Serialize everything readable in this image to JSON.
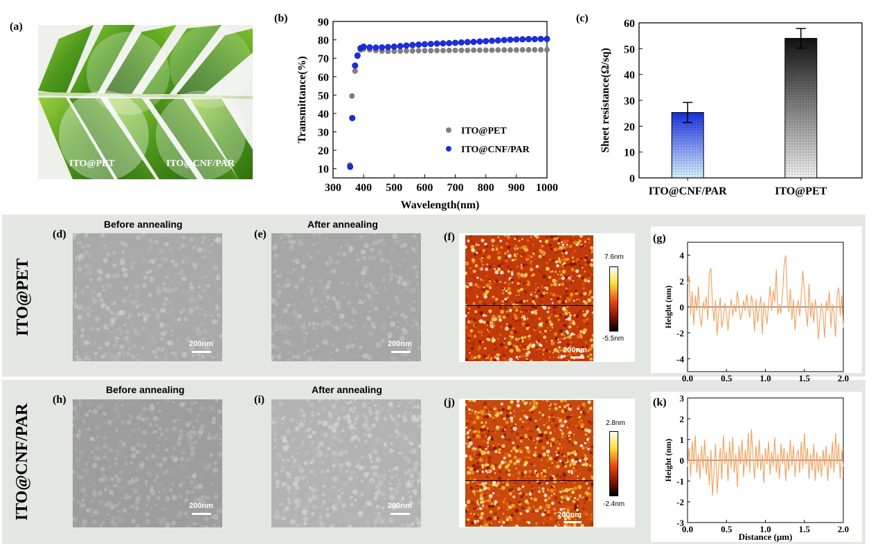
{
  "panel_labels": {
    "a": "(a)",
    "b": "(b)",
    "c": "(c)",
    "d": "(d)",
    "e": "(e)",
    "f": "(f)",
    "g": "(g)",
    "h": "(h)",
    "i": "(i)",
    "j": "(j)",
    "k": "(k)"
  },
  "photo": {
    "label_left": "ITO@PET",
    "label_right": "ITO@CNF/PAR"
  },
  "rows": {
    "top_label": "ITO@PET",
    "bottom_label": "ITO@CNF/PAR"
  },
  "sem": {
    "before_title": "Before annealing",
    "after_title": "After annealing",
    "scale_bar": "200nm"
  },
  "afm_top": {
    "max_label": "7.6nm",
    "min_label": "-5.5nm",
    "scale_bar": "200nm"
  },
  "afm_bottom": {
    "max_label": "2.8nm",
    "min_label": "-2.4nm",
    "scale_bar": "200nm"
  },
  "colors": {
    "grey_series": "#808080",
    "blue_series": "#1a2ee6",
    "profile_line": "#f2a462",
    "panel_bg": "#e3e7e1"
  },
  "chart_data": [
    {
      "id": "b",
      "type": "scatter",
      "xlabel": "Wavelength(nm)",
      "ylabel": "Transmittance(%)",
      "xlim": [
        300,
        1000
      ],
      "ylim": [
        5,
        90
      ],
      "xticks": [
        300,
        400,
        500,
        600,
        700,
        800,
        900,
        1000
      ],
      "yticks": [
        10,
        20,
        30,
        40,
        50,
        60,
        70,
        80,
        90
      ],
      "legend_position": "center-right",
      "series": [
        {
          "name": "ITO@PET",
          "color": "#808080",
          "points": [
            [
              355,
              12
            ],
            [
              362,
              49.5
            ],
            [
              372,
              63
            ],
            [
              380,
              71
            ],
            [
              390,
              74.5
            ],
            [
              400,
              75
            ],
            [
              420,
              74.6
            ],
            [
              440,
              74.2
            ],
            [
              460,
              73.9
            ],
            [
              480,
              73.8
            ],
            [
              500,
              73.8
            ],
            [
              520,
              73.9
            ],
            [
              540,
              74.0
            ],
            [
              560,
              74.0
            ],
            [
              580,
              74.1
            ],
            [
              600,
              74.1
            ],
            [
              620,
              74.1
            ],
            [
              640,
              74.2
            ],
            [
              660,
              74.2
            ],
            [
              680,
              74.3
            ],
            [
              700,
              74.3
            ],
            [
              720,
              74.3
            ],
            [
              740,
              74.3
            ],
            [
              760,
              74.4
            ],
            [
              780,
              74.4
            ],
            [
              800,
              74.4
            ],
            [
              820,
              74.4
            ],
            [
              840,
              74.5
            ],
            [
              860,
              74.5
            ],
            [
              880,
              74.5
            ],
            [
              900,
              74.5
            ],
            [
              920,
              74.6
            ],
            [
              940,
              74.6
            ],
            [
              960,
              74.6
            ],
            [
              980,
              74.6
            ],
            [
              1000,
              74.6
            ]
          ]
        },
        {
          "name": "ITO@CNF/PAR",
          "color": "#1a2ee6",
          "points": [
            [
              356,
              11
            ],
            [
              363,
              37.5
            ],
            [
              372,
              66
            ],
            [
              380,
              71.5
            ],
            [
              390,
              75.5
            ],
            [
              400,
              76.3
            ],
            [
              420,
              75.9
            ],
            [
              440,
              75.8
            ],
            [
              460,
              75.9
            ],
            [
              480,
              76.1
            ],
            [
              500,
              76.3
            ],
            [
              520,
              76.6
            ],
            [
              540,
              76.9
            ],
            [
              560,
              77.2
            ],
            [
              580,
              77.4
            ],
            [
              600,
              77.6
            ],
            [
              620,
              77.8
            ],
            [
              640,
              78.0
            ],
            [
              660,
              78.1
            ],
            [
              680,
              78.2
            ],
            [
              700,
              78.4
            ],
            [
              720,
              78.6
            ],
            [
              740,
              78.8
            ],
            [
              760,
              78.9
            ],
            [
              780,
              79.1
            ],
            [
              800,
              79.3
            ],
            [
              820,
              79.5
            ],
            [
              840,
              79.7
            ],
            [
              860,
              79.9
            ],
            [
              880,
              80.1
            ],
            [
              900,
              80.2
            ],
            [
              920,
              80.3
            ],
            [
              940,
              80.4
            ],
            [
              960,
              80.4
            ],
            [
              980,
              80.5
            ],
            [
              1000,
              80.5
            ]
          ]
        }
      ]
    },
    {
      "id": "c",
      "type": "bar",
      "ylabel": "Sheet resistance(Ω/sq)",
      "ylim": [
        0,
        60
      ],
      "yticks": [
        0,
        10,
        20,
        30,
        40,
        50,
        60
      ],
      "categories": [
        "ITO@CNF/PAR",
        "ITO@PET"
      ],
      "values": [
        25.3,
        54.0
      ],
      "errors": [
        3.9,
        3.8
      ],
      "bar_colors": [
        "#1f3fe0",
        "#1a1a1a"
      ]
    },
    {
      "id": "g",
      "type": "line",
      "ylabel": "Height (nm)",
      "xlim": [
        0.0,
        2.0
      ],
      "ylim": [
        -5,
        5
      ],
      "xticks": [
        0.0,
        0.5,
        1.0,
        1.5,
        2.0
      ],
      "yticks": [
        -4,
        -2,
        0,
        2,
        4
      ],
      "series": [
        {
          "color": "#f2a462",
          "x": [
            0.0,
            0.02,
            0.04,
            0.06,
            0.08,
            0.1,
            0.12,
            0.14,
            0.16,
            0.18,
            0.2,
            0.22,
            0.24,
            0.26,
            0.28,
            0.3,
            0.32,
            0.34,
            0.36,
            0.38,
            0.4,
            0.42,
            0.44,
            0.46,
            0.48,
            0.5,
            0.52,
            0.54,
            0.56,
            0.58,
            0.6,
            0.62,
            0.64,
            0.66,
            0.68,
            0.7,
            0.72,
            0.74,
            0.76,
            0.78,
            0.8,
            0.82,
            0.84,
            0.86,
            0.88,
            0.9,
            0.92,
            0.94,
            0.96,
            0.98,
            1.0,
            1.02,
            1.04,
            1.06,
            1.08,
            1.1,
            1.12,
            1.14,
            1.16,
            1.18,
            1.2,
            1.22,
            1.24,
            1.26,
            1.28,
            1.3,
            1.32,
            1.34,
            1.36,
            1.38,
            1.4,
            1.42,
            1.44,
            1.46,
            1.48,
            1.5,
            1.52,
            1.54,
            1.56,
            1.58,
            1.6,
            1.62,
            1.64,
            1.66,
            1.68,
            1.7,
            1.72,
            1.74,
            1.76,
            1.78,
            1.8,
            1.82,
            1.84,
            1.86,
            1.88,
            1.9,
            1.92,
            1.94,
            1.96,
            1.98,
            2.0
          ],
          "y": [
            1.8,
            2.4,
            -0.6,
            1.2,
            -1.4,
            0.9,
            -0.3,
            1.6,
            -0.8,
            -1.5,
            0.4,
            -0.2,
            0.8,
            -1.0,
            2.6,
            3.0,
            0.2,
            -1.1,
            0.5,
            -2.2,
            -0.4,
            0.7,
            -1.6,
            -0.9,
            0.3,
            -0.5,
            -1.8,
            -0.2,
            0.6,
            -0.7,
            0.2,
            -0.4,
            1.2,
            0.3,
            -1.0,
            -0.5,
            0.5,
            -0.3,
            1.0,
            -0.2,
            -0.8,
            0.9,
            0.3,
            -1.9,
            0.6,
            -1.2,
            -0.1,
            0.8,
            -2.1,
            0.4,
            -0.4,
            -1.3,
            0.2,
            1.6,
            -0.3,
            1.3,
            0.4,
            2.9,
            -0.6,
            0.2,
            -0.5,
            1.1,
            3.2,
            4.0,
            0.8,
            -0.4,
            1.4,
            -1.0,
            0.6,
            -1.8,
            -0.2,
            0.5,
            -0.7,
            0.9,
            2.8,
            1.2,
            -0.3,
            -1.5,
            1.8,
            -0.8,
            0.4,
            -1.2,
            0.6,
            -0.4,
            -2.5,
            -1.0,
            0.3,
            -0.6,
            -2.4,
            0.5,
            -0.3,
            1.2,
            -1.6,
            0.2,
            -0.5,
            -2.3,
            0.9,
            1.5,
            -0.7,
            0.9,
            -1.6
          ]
        }
      ]
    },
    {
      "id": "k",
      "type": "line",
      "xlabel": "Distance (μm)",
      "ylabel": "Height (nm)",
      "xlim": [
        0.0,
        2.0
      ],
      "ylim": [
        -3,
        3
      ],
      "xticks": [
        0.0,
        0.5,
        1.0,
        1.5,
        2.0
      ],
      "yticks": [
        -3,
        -2,
        -1,
        0,
        1,
        2,
        3
      ],
      "series": [
        {
          "color": "#f2a462",
          "x": [
            0.0,
            0.02,
            0.04,
            0.06,
            0.08,
            0.1,
            0.12,
            0.14,
            0.16,
            0.18,
            0.2,
            0.22,
            0.24,
            0.26,
            0.28,
            0.3,
            0.32,
            0.34,
            0.36,
            0.38,
            0.4,
            0.42,
            0.44,
            0.46,
            0.48,
            0.5,
            0.52,
            0.54,
            0.56,
            0.58,
            0.6,
            0.62,
            0.64,
            0.66,
            0.68,
            0.7,
            0.72,
            0.74,
            0.76,
            0.78,
            0.8,
            0.82,
            0.84,
            0.86,
            0.88,
            0.9,
            0.92,
            0.94,
            0.96,
            0.98,
            1.0,
            1.02,
            1.04,
            1.06,
            1.08,
            1.1,
            1.12,
            1.14,
            1.16,
            1.18,
            1.2,
            1.22,
            1.24,
            1.26,
            1.28,
            1.3,
            1.32,
            1.34,
            1.36,
            1.38,
            1.4,
            1.42,
            1.44,
            1.46,
            1.48,
            1.5,
            1.52,
            1.54,
            1.56,
            1.58,
            1.6,
            1.62,
            1.64,
            1.66,
            1.68,
            1.7,
            1.72,
            1.74,
            1.76,
            1.78,
            1.8,
            1.82,
            1.84,
            1.86,
            1.88,
            1.9,
            1.92,
            1.94,
            1.96,
            1.98,
            2.0
          ],
          "y": [
            -0.3,
            0.6,
            -0.8,
            0.9,
            -0.2,
            1.2,
            -0.6,
            0.3,
            -0.9,
            0.7,
            -0.4,
            1.0,
            -0.7,
            0.2,
            -1.2,
            0.5,
            -1.7,
            -0.5,
            0.8,
            -1.6,
            -0.3,
            0.6,
            -0.9,
            1.2,
            -0.2,
            0.4,
            -1.0,
            0.9,
            -0.4,
            1.1,
            -0.6,
            0.3,
            -1.3,
            0.7,
            -0.2,
            1.0,
            -0.8,
            0.5,
            -0.3,
            1.3,
            -0.6,
            1.5,
            0.2,
            -0.9,
            0.7,
            -0.4,
            1.0,
            -0.5,
            0.3,
            -1.1,
            0.6,
            -0.2,
            0.9,
            -0.7,
            0.4,
            -0.3,
            1.1,
            -0.6,
            0.3,
            -0.9,
            0.8,
            -0.2,
            0.6,
            -1.0,
            0.4,
            -0.5,
            1.0,
            -0.3,
            0.7,
            -0.8,
            0.2,
            0.5,
            -0.6,
            0.9,
            -0.4,
            1.3,
            -0.2,
            0.6,
            -0.9,
            0.3,
            -0.5,
            0.8,
            -1.0,
            0.4,
            -0.6,
            0.2,
            -0.8,
            0.5,
            -0.3,
            0.7,
            -1.0,
            0.3,
            -0.4,
            0.9,
            -0.6,
            1.3,
            -0.2,
            0.8,
            -0.9,
            0.5,
            -0.3
          ]
        }
      ]
    }
  ]
}
